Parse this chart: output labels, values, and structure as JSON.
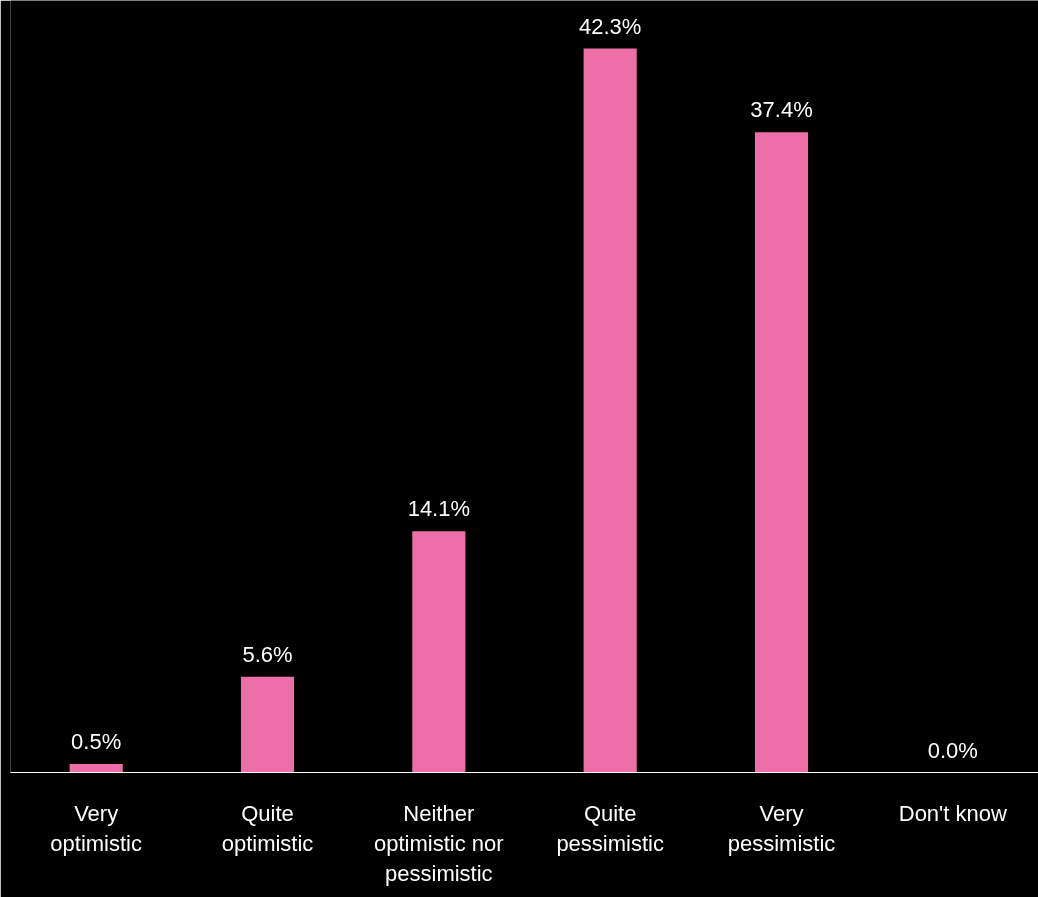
{
  "chart_data": {
    "type": "bar",
    "categories": [
      "Very optimistic",
      "Quite optimistic",
      "Neither optimistic nor pessimistic",
      "Quite pessimistic",
      "Very pessimistic",
      "Don't know"
    ],
    "values": [
      0.5,
      5.6,
      14.1,
      42.3,
      37.4,
      0.0
    ],
    "value_labels": [
      "0.5%",
      "5.6%",
      "14.1%",
      "42.3%",
      "37.4%",
      "0.0%"
    ],
    "color": "#ed6fa8",
    "grid": false,
    "tick_labels": "x"
  }
}
